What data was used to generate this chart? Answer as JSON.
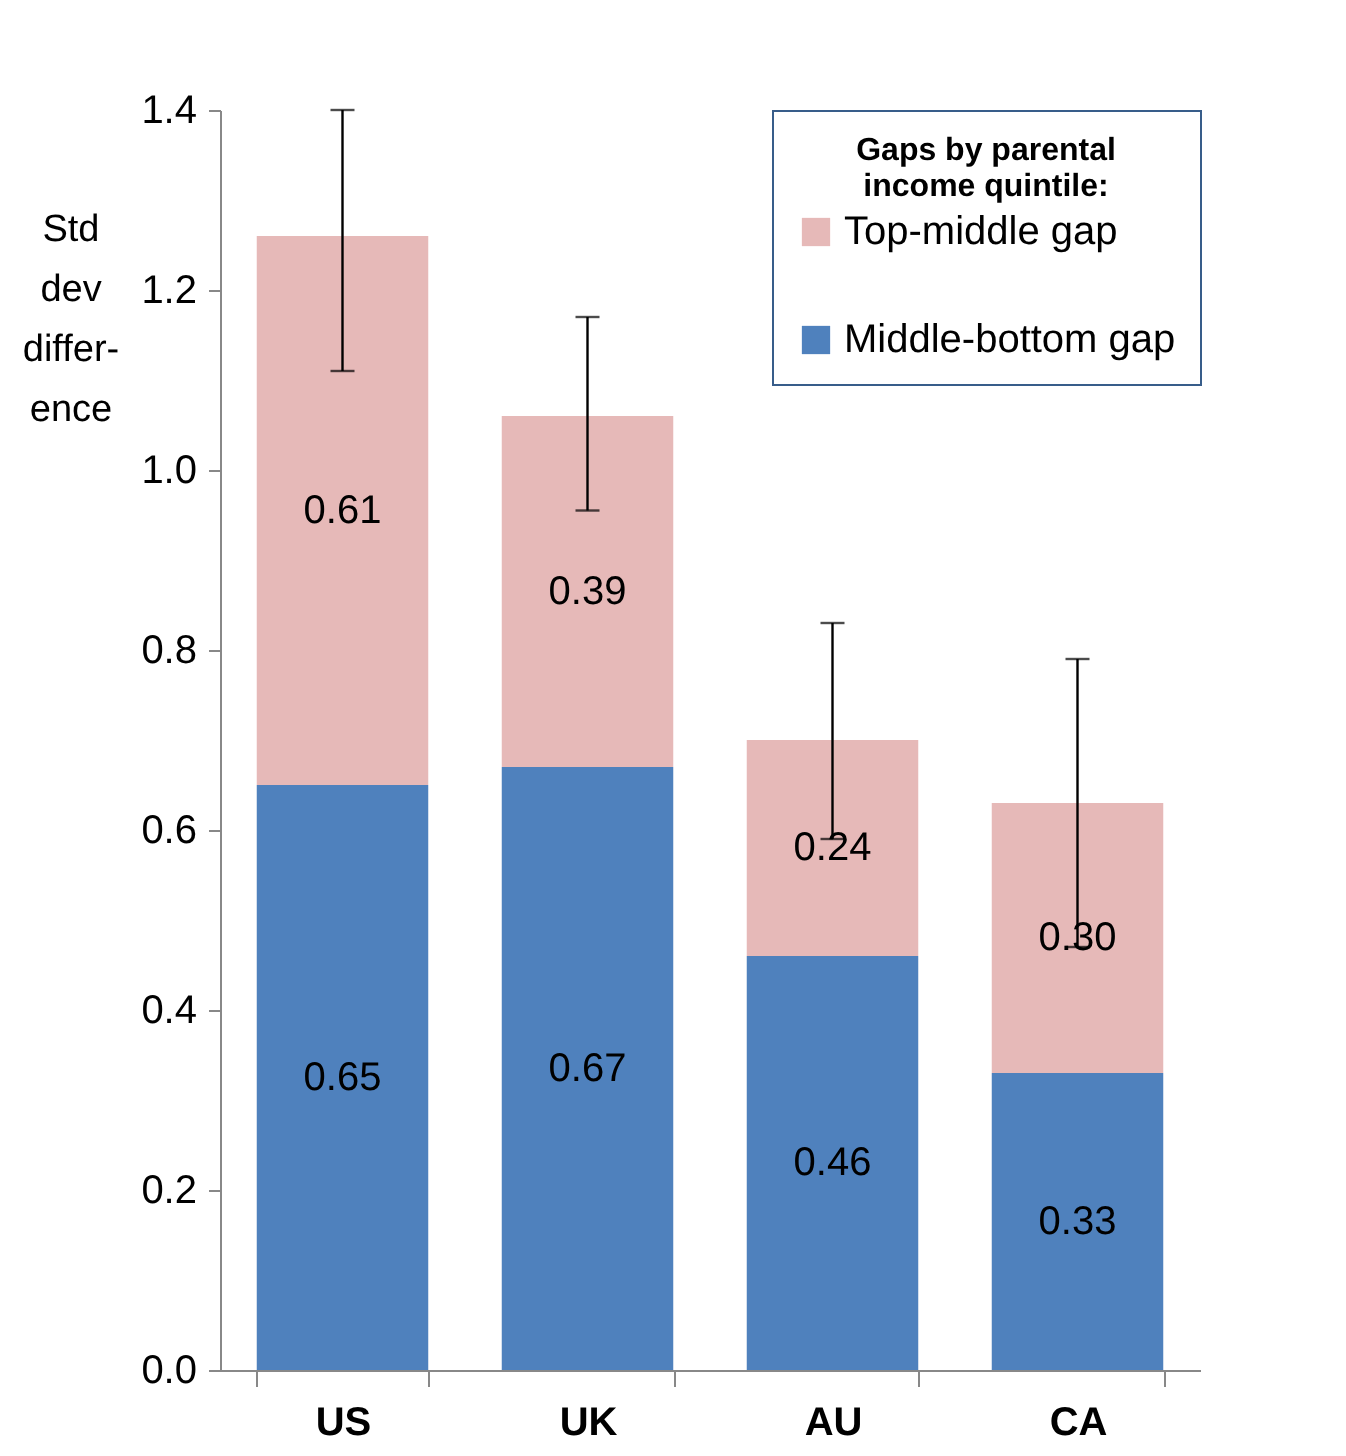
{
  "chart_data": {
    "type": "bar",
    "stacked": true,
    "ylabel": "Std dev differ-ence",
    "legend_title": "Gaps by parental income quintile:",
    "categories": [
      "US",
      "UK",
      "AU",
      "CA"
    ],
    "series": [
      {
        "name": "Middle-bottom gap",
        "color": "#4f81bd",
        "values": [
          0.65,
          0.67,
          0.46,
          0.33
        ],
        "value_labels": [
          "0.65",
          "0.67",
          "0.46",
          "0.33"
        ]
      },
      {
        "name": "Top-middle gap",
        "color": "#e6b9b8",
        "values": [
          0.61,
          0.39,
          0.24,
          0.3
        ],
        "value_labels": [
          "0.61",
          "0.39",
          "0.24",
          "0.30"
        ],
        "errors": [
          [
            1.11,
            1.4
          ],
          [
            0.955,
            1.17
          ],
          [
            0.59,
            0.83
          ],
          [
            0.47,
            0.79
          ]
        ]
      }
    ],
    "ylim": [
      0,
      1.4
    ],
    "yticks": [
      {
        "value": 0,
        "label": "0.0"
      },
      {
        "value": 0.2,
        "label": "0.2"
      },
      {
        "value": 0.4,
        "label": "0.4"
      },
      {
        "value": 0.6,
        "label": "0.6"
      },
      {
        "value": 0.8,
        "label": "0.8"
      },
      {
        "value": 1,
        "label": "1.0"
      },
      {
        "value": 1.2,
        "label": "1.2"
      },
      {
        "value": 1.4,
        "label": "1.4"
      }
    ],
    "legend": "top right",
    "grid": false
  }
}
